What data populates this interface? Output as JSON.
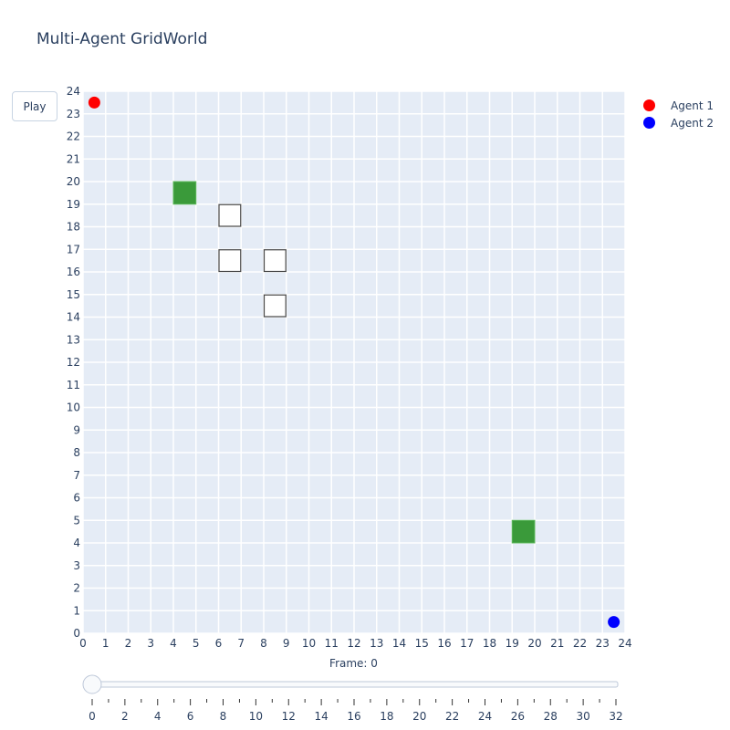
{
  "title": "Multi-Agent GridWorld",
  "play_label": "Play",
  "frame_label": "Frame: 0",
  "legend": [
    {
      "label": "Agent 1",
      "color": "#ff0000"
    },
    {
      "label": "Agent 2",
      "color": "#0000ff"
    }
  ],
  "slider": {
    "min": 0,
    "max": 32,
    "value": 0,
    "tick_labels": [
      0,
      2,
      4,
      6,
      8,
      10,
      12,
      14,
      16,
      18,
      20,
      22,
      24,
      26,
      28,
      30,
      32
    ]
  },
  "chart_data": {
    "type": "scatter",
    "title": "Multi-Agent GridWorld",
    "xlim": [
      0,
      24
    ],
    "ylim": [
      0,
      24
    ],
    "x_ticks": [
      0,
      1,
      2,
      3,
      4,
      5,
      6,
      7,
      8,
      9,
      10,
      11,
      12,
      13,
      14,
      15,
      16,
      17,
      18,
      19,
      20,
      21,
      22,
      23,
      24
    ],
    "y_ticks": [
      0,
      1,
      2,
      3,
      4,
      5,
      6,
      7,
      8,
      9,
      10,
      11,
      12,
      13,
      14,
      15,
      16,
      17,
      18,
      19,
      20,
      21,
      22,
      23,
      24
    ],
    "grid": true,
    "legend_position": "top-right",
    "background_color": "#e5ecf6",
    "goals": [
      {
        "x": 4.5,
        "y": 19.5,
        "color": "#3a9a3a"
      },
      {
        "x": 19.5,
        "y": 4.5,
        "color": "#3a9a3a"
      }
    ],
    "obstacles": [
      {
        "x": 6.5,
        "y": 18.5
      },
      {
        "x": 6.5,
        "y": 16.5
      },
      {
        "x": 8.5,
        "y": 16.5
      },
      {
        "x": 8.5,
        "y": 14.5
      }
    ],
    "series": [
      {
        "name": "Agent 1",
        "color": "#ff0000",
        "x": [
          0.5
        ],
        "y": [
          23.5
        ]
      },
      {
        "name": "Agent 2",
        "color": "#0000ff",
        "x": [
          23.5
        ],
        "y": [
          0.5
        ]
      }
    ]
  }
}
